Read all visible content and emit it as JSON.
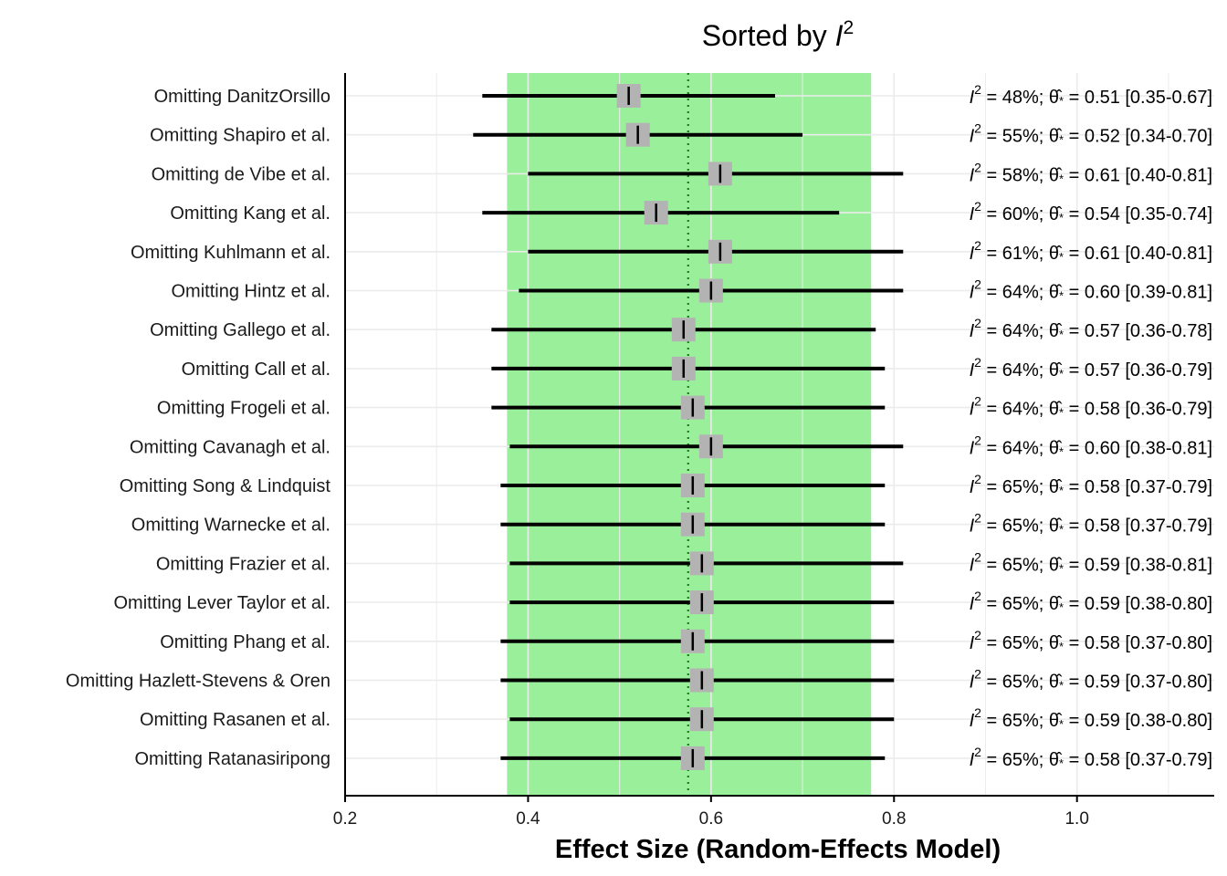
{
  "chart_data": {
    "type": "forest",
    "title": {
      "prefix": "Sorted by ",
      "var": "I",
      "sup": "2"
    },
    "xlabel": "Effect Size (Random-Effects Model)",
    "xlim": [
      0.2,
      1.15
    ],
    "xticks": [
      0.2,
      0.4,
      0.6,
      0.8,
      1.0
    ],
    "xtick_labels": [
      "0.2",
      "0.4",
      "0.6",
      "0.8",
      "1.0"
    ],
    "band": {
      "low": 0.377,
      "high": 0.775,
      "color": "#9af09a"
    },
    "reference_line": 0.575,
    "colors": {
      "ci": "#000000",
      "box": "#b3b3b3",
      "reference": "#1f7a1f",
      "grid": "#ebebeb"
    },
    "rows": [
      {
        "label": "Omitting DanitzOrsillo",
        "est": 0.51,
        "lo": 0.35,
        "hi": 0.67,
        "i2": 48,
        "annot": "I² = 48%; θ̂* = 0.51 [0.35-0.67]"
      },
      {
        "label": "Omitting Shapiro et al.",
        "est": 0.52,
        "lo": 0.34,
        "hi": 0.7,
        "i2": 55,
        "annot": "I² = 55%; θ̂* = 0.52 [0.34-0.70]"
      },
      {
        "label": "Omitting de Vibe et al.",
        "est": 0.61,
        "lo": 0.4,
        "hi": 0.81,
        "i2": 58,
        "annot": "I² = 58%; θ̂* = 0.61 [0.40-0.81]"
      },
      {
        "label": "Omitting Kang et al.",
        "est": 0.54,
        "lo": 0.35,
        "hi": 0.74,
        "i2": 60,
        "annot": "I² = 60%; θ̂* = 0.54 [0.35-0.74]"
      },
      {
        "label": "Omitting Kuhlmann et al.",
        "est": 0.61,
        "lo": 0.4,
        "hi": 0.81,
        "i2": 61,
        "annot": "I² = 61%; θ̂* = 0.61 [0.40-0.81]"
      },
      {
        "label": "Omitting Hintz et al.",
        "est": 0.6,
        "lo": 0.39,
        "hi": 0.81,
        "i2": 64,
        "annot": "I² = 64%; θ̂* = 0.60 [0.39-0.81]"
      },
      {
        "label": "Omitting Gallego et al.",
        "est": 0.57,
        "lo": 0.36,
        "hi": 0.78,
        "i2": 64,
        "annot": "I² = 64%; θ̂* = 0.57 [0.36-0.78]"
      },
      {
        "label": "Omitting Call et al.",
        "est": 0.57,
        "lo": 0.36,
        "hi": 0.79,
        "i2": 64,
        "annot": "I² = 64%; θ̂* = 0.57 [0.36-0.79]"
      },
      {
        "label": "Omitting Frogeli et al.",
        "est": 0.58,
        "lo": 0.36,
        "hi": 0.79,
        "i2": 64,
        "annot": "I² = 64%; θ̂* = 0.58 [0.36-0.79]"
      },
      {
        "label": "Omitting Cavanagh et al.",
        "est": 0.6,
        "lo": 0.38,
        "hi": 0.81,
        "i2": 64,
        "annot": "I² = 64%; θ̂* = 0.60 [0.38-0.81]"
      },
      {
        "label": "Omitting Song & Lindquist",
        "est": 0.58,
        "lo": 0.37,
        "hi": 0.79,
        "i2": 65,
        "annot": "I² = 65%; θ̂* = 0.58 [0.37-0.79]"
      },
      {
        "label": "Omitting Warnecke et al.",
        "est": 0.58,
        "lo": 0.37,
        "hi": 0.79,
        "i2": 65,
        "annot": "I² = 65%; θ̂* = 0.58 [0.37-0.79]"
      },
      {
        "label": "Omitting Frazier et al.",
        "est": 0.59,
        "lo": 0.38,
        "hi": 0.81,
        "i2": 65,
        "annot": "I² = 65%; θ̂* = 0.59 [0.38-0.81]"
      },
      {
        "label": "Omitting Lever Taylor et al.",
        "est": 0.59,
        "lo": 0.38,
        "hi": 0.8,
        "i2": 65,
        "annot": "I² = 65%; θ̂* = 0.59 [0.38-0.80]"
      },
      {
        "label": "Omitting Phang et al.",
        "est": 0.58,
        "lo": 0.37,
        "hi": 0.8,
        "i2": 65,
        "annot": "I² = 65%; θ̂* = 0.58 [0.37-0.80]"
      },
      {
        "label": "Omitting Hazlett-Stevens & Oren",
        "est": 0.59,
        "lo": 0.37,
        "hi": 0.8,
        "i2": 65,
        "annot": "I² = 65%; θ̂* = 0.59 [0.37-0.80]"
      },
      {
        "label": "Omitting Rasanen et al.",
        "est": 0.59,
        "lo": 0.38,
        "hi": 0.8,
        "i2": 65,
        "annot": "I² = 65%; θ̂* = 0.59 [0.38-0.80]"
      },
      {
        "label": "Omitting Ratanasiripong",
        "est": 0.58,
        "lo": 0.37,
        "hi": 0.79,
        "i2": 65,
        "annot": "I² = 65%; θ̂* = 0.58 [0.37-0.79]"
      }
    ]
  }
}
